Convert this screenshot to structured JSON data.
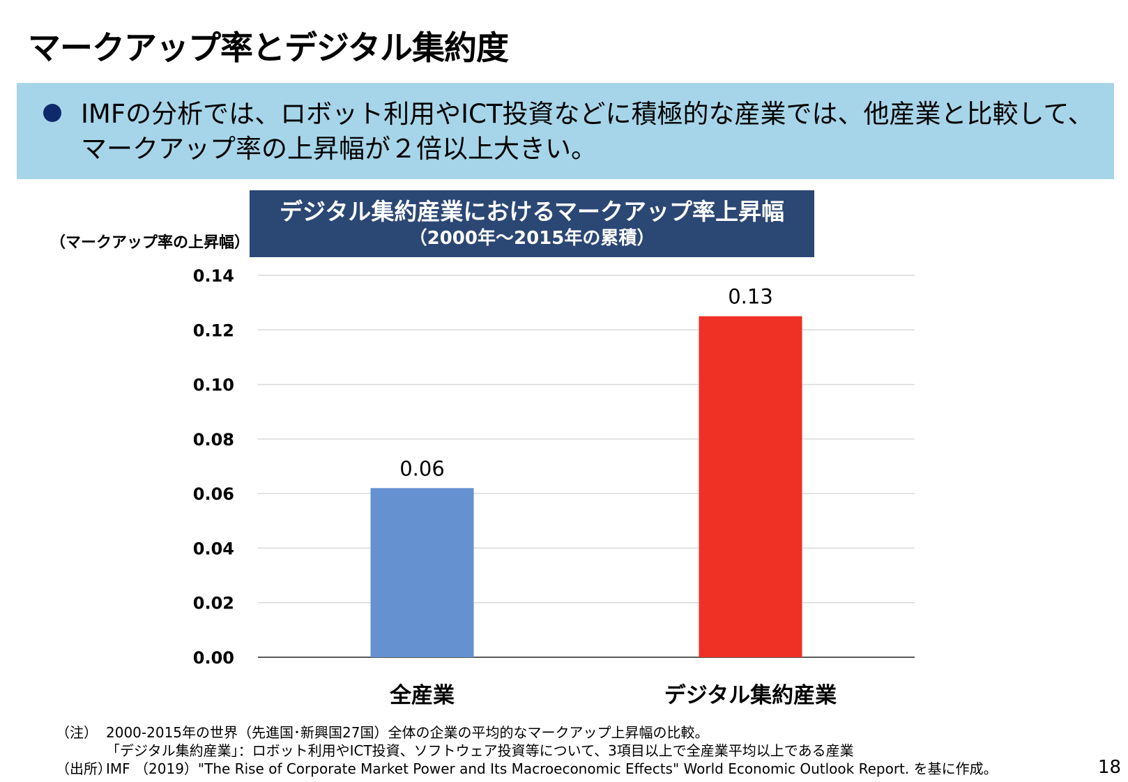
{
  "page": {
    "title": "マークアップ率とデジタル集約度",
    "bullet": "IMFの分析では、ロボット利用やICT投資などに積極的な産業では、他産業と比較して、マークアップ率の上昇幅が２倍以上大きい。",
    "page_number": "18"
  },
  "chart_data": {
    "type": "bar",
    "title": "デジタル集約産業におけるマークアップ率上昇幅",
    "subtitle": "（2000年～2015年の累積）",
    "ylabel": "（マークアップ率の上昇幅）",
    "xlabel": "",
    "categories": [
      "全産業",
      "デジタル集約産業"
    ],
    "values": [
      0.062,
      0.125
    ],
    "data_labels": [
      "0.06",
      "0.13"
    ],
    "colors": [
      "#6591d1",
      "#ee3124"
    ],
    "ylim": [
      0,
      0.14
    ],
    "yticks": [
      "0.00",
      "0.02",
      "0.04",
      "0.06",
      "0.08",
      "0.10",
      "0.12",
      "0.14"
    ],
    "grid": true,
    "legend": "none"
  },
  "notes": {
    "note_prefix": "（注）",
    "note_line1": "2000-2015年の世界（先進国･新興国27国）全体の企業の平均的なマークアップ上昇幅の比較。",
    "note_line2": "「デジタル集約産業」：ロボット利用やICT投資、ソフトウェア投資等について、3項目以上で全産業平均以上である産業",
    "source_prefix": "（出所）",
    "source_text": "IMF （2019）\"The Rise of Corporate Market Power and Its Macroeconomic Effects\" World Economic Outlook Report. を基に作成。"
  }
}
